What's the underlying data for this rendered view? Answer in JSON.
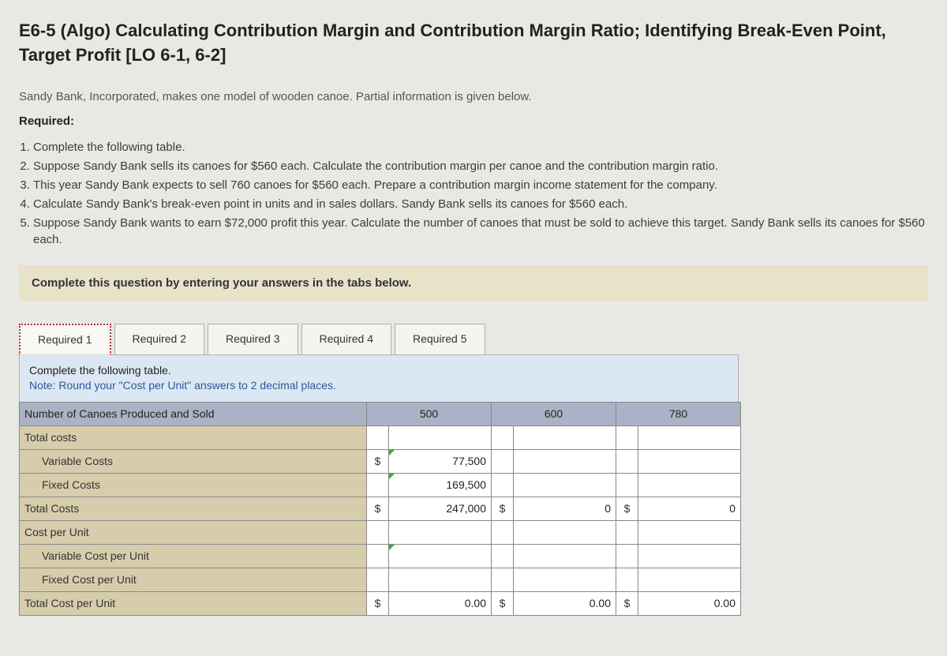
{
  "title": "E6-5 (Algo) Calculating Contribution Margin and Contribution Margin Ratio; Identifying Break-Even Point, Target Profit [LO 6-1, 6-2]",
  "intro": "Sandy Bank, Incorporated, makes one model of wooden canoe. Partial information is given below.",
  "required_label": "Required:",
  "requirements": [
    "Complete the following table.",
    "Suppose Sandy Bank sells its canoes for $560 each. Calculate the contribution margin per canoe and the contribution margin ratio.",
    "This year Sandy Bank expects to sell 760 canoes for $560 each. Prepare a contribution margin income statement for the company.",
    "Calculate Sandy Bank's break-even point in units and in sales dollars. Sandy Bank sells its canoes for $560 each.",
    "Suppose Sandy Bank wants to earn $72,000 profit this year. Calculate the number of canoes that must be sold to achieve this target. Sandy Bank sells its canoes for $560 each."
  ],
  "instruction": "Complete this question by entering your answers in the tabs below.",
  "tabs": [
    {
      "label": "Required 1"
    },
    {
      "label": "Required 2"
    },
    {
      "label": "Required 3"
    },
    {
      "label": "Required 4"
    },
    {
      "label": "Required 5"
    }
  ],
  "active_tab": 0,
  "panel": {
    "line1": "Complete the following table.",
    "line2": "Note: Round your \"Cost per Unit\" answers to 2 decimal places."
  },
  "table": {
    "header_row_label": "Number of Canoes Produced and Sold",
    "col_values": [
      "500",
      "600",
      "780"
    ],
    "rows": [
      {
        "label": "Total costs",
        "indent": false,
        "cells": [
          {
            "cur": "",
            "val": ""
          },
          {
            "cur": "",
            "val": ""
          },
          {
            "cur": "",
            "val": ""
          }
        ]
      },
      {
        "label": "Variable Costs",
        "indent": true,
        "cells": [
          {
            "cur": "$",
            "val": "77,500",
            "editable": true
          },
          {
            "cur": "",
            "val": ""
          },
          {
            "cur": "",
            "val": ""
          }
        ]
      },
      {
        "label": "Fixed Costs",
        "indent": true,
        "cells": [
          {
            "cur": "",
            "val": "169,500",
            "editable": true
          },
          {
            "cur": "",
            "val": ""
          },
          {
            "cur": "",
            "val": ""
          }
        ]
      },
      {
        "label": "Total Costs",
        "indent": false,
        "cells": [
          {
            "cur": "$",
            "val": "247,000"
          },
          {
            "cur": "$",
            "val": "0"
          },
          {
            "cur": "$",
            "val": "0"
          }
        ]
      },
      {
        "label": "Cost per Unit",
        "indent": false,
        "cells": [
          {
            "cur": "",
            "val": ""
          },
          {
            "cur": "",
            "val": ""
          },
          {
            "cur": "",
            "val": ""
          }
        ]
      },
      {
        "label": "Variable Cost per Unit",
        "indent": true,
        "cells": [
          {
            "cur": "",
            "val": "",
            "editable": true
          },
          {
            "cur": "",
            "val": ""
          },
          {
            "cur": "",
            "val": ""
          }
        ]
      },
      {
        "label": "Fixed Cost per Unit",
        "indent": true,
        "cells": [
          {
            "cur": "",
            "val": ""
          },
          {
            "cur": "",
            "val": ""
          },
          {
            "cur": "",
            "val": ""
          }
        ]
      },
      {
        "label": "Total Cost per Unit",
        "indent": false,
        "cells": [
          {
            "cur": "$",
            "val": "0.00"
          },
          {
            "cur": "$",
            "val": "0.00"
          },
          {
            "cur": "$",
            "val": "0.00"
          }
        ]
      }
    ]
  },
  "colors": {
    "background": "#e8e8e4",
    "instruction_bg": "#e7e2c8",
    "panel_bg": "#dbe7f2",
    "header_bg": "#aab3c5",
    "label_bg": "#d7cdad"
  }
}
